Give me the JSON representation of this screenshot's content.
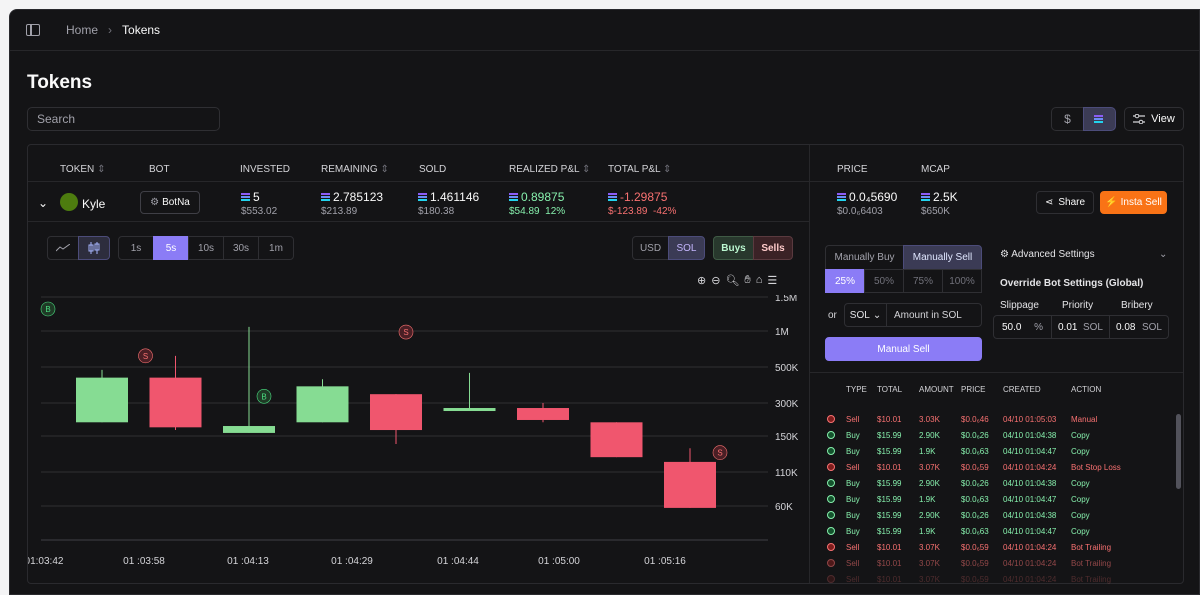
{
  "breadcrumb": {
    "home": "Home",
    "current": "Tokens"
  },
  "page_title": "Tokens",
  "search": {
    "placeholder": "Search"
  },
  "toolbar": {
    "currency_usd": "$",
    "view_label": "View"
  },
  "columns": {
    "token": "TOKEN",
    "bot": "BOT",
    "invested": "INVESTED",
    "remaining": "REMAINING",
    "sold": "SOLD",
    "realized": "REALIZED P&L",
    "total": "TOTAL P&L",
    "price": "PRICE",
    "mcap": "MCAP"
  },
  "row": {
    "token": "Kyle",
    "bot": "BotNa",
    "invested": "5",
    "invested_usd": "$553.02",
    "remaining": "2.785123",
    "remaining_usd": "$213.89",
    "sold": "1.461146",
    "sold_usd": "$180.38",
    "realized": "0.89875",
    "realized_usd": "$54.89",
    "realized_pct": "12%",
    "total": "-1.29875",
    "total_usd": "$-123.89",
    "total_pct": "-42%",
    "price": "0.0₄5690",
    "price_usd": "$0.0₆6403",
    "mcap": "2.5K",
    "mcap_usd": "$650K",
    "share": "Share",
    "insta_sell": "Insta Sell"
  },
  "chart_controls": {
    "timeframes": [
      "1s",
      "5s",
      "10s",
      "30s",
      "1m"
    ],
    "selected_timeframe": "5s",
    "unit_usd": "USD",
    "unit_sol": "SOL",
    "buys": "Buys",
    "sells": "Sells"
  },
  "chart_data": {
    "type": "candlestick",
    "x_ticks": [
      "01:03:42",
      "01 :03:58",
      "01 :04:13",
      "01 :04:29",
      "01 :04:44",
      "01 :05:00",
      "01 :05:16"
    ],
    "y_ticks": [
      "1.5M",
      "1M",
      "500K",
      "300K",
      "150K",
      "110K",
      "60K"
    ],
    "y_scale": "log",
    "candles": [
      {
        "open": 200000,
        "close": 430000,
        "high": 480000,
        "low": 200000,
        "color": "#86dc93"
      },
      {
        "open": 430000,
        "close": 180000,
        "high": 620000,
        "low": 170000,
        "color": "#f0566e"
      },
      {
        "open": 160000,
        "close": 185000,
        "high": 1050000,
        "low": 160000,
        "color": "#86dc93"
      },
      {
        "open": 200000,
        "close": 380000,
        "high": 420000,
        "low": 200000,
        "color": "#86dc93"
      },
      {
        "open": 340000,
        "close": 170000,
        "high": 340000,
        "low": 140000,
        "color": "#f0566e"
      },
      {
        "open": 255000,
        "close": 270000,
        "high": 460000,
        "low": 255000,
        "color": "#86dc93"
      },
      {
        "open": 270000,
        "close": 210000,
        "high": 300000,
        "low": 200000,
        "color": "#f0566e"
      },
      {
        "open": 200000,
        "close": 125000,
        "high": 200000,
        "low": 125000,
        "color": "#f0566e"
      },
      {
        "open": 120000,
        "close": 58000,
        "high": 135000,
        "low": 58000,
        "color": "#f0566e"
      }
    ],
    "markers": [
      {
        "label": "B",
        "type": "buy",
        "candle": 0,
        "value": 1300000
      },
      {
        "label": "S",
        "type": "sell",
        "candle": 1,
        "value": 620000
      },
      {
        "label": "B",
        "type": "buy",
        "candle": 2,
        "value": 330000
      },
      {
        "label": "S",
        "type": "sell",
        "candle": 4,
        "value": 980000
      },
      {
        "label": "S",
        "type": "sell",
        "candle": 8,
        "value": 130000
      }
    ]
  },
  "trade_panel": {
    "manual_buy": "Manually Buy",
    "manual_sell": "Manually Sell",
    "percents": [
      "25%",
      "50%",
      "75%",
      "100%"
    ],
    "selected_percent": "25%",
    "or": "or",
    "currency": "SOL",
    "amount_placeholder": "Amount in SOL",
    "submit": "Manual Sell",
    "advanced": "Advanced Settings",
    "override": "Override Bot Settings (Global)",
    "slippage_label": "Slippage",
    "slippage_value": "50.0",
    "slippage_unit": "%",
    "priority_label": "Priority",
    "priority_value": "0.01",
    "priority_unit": "SOL",
    "bribery_label": "Bribery",
    "bribery_value": "0.08",
    "bribery_unit": "SOL"
  },
  "trades": {
    "headers": [
      "TYPE",
      "TOTAL",
      "AMOUNT",
      "PRICE",
      "CREATED",
      "ACTION"
    ],
    "rows": [
      [
        "Sell",
        "$10.01",
        "3.03K",
        "$0.0₆46",
        "04/10 01:05:03",
        "Manual"
      ],
      [
        "Buy",
        "$15.99",
        "2.90K",
        "$0.0₆26",
        "04/10 01:04:38",
        "Copy"
      ],
      [
        "Buy",
        "$15.99",
        "1.9K",
        "$0.0₆63",
        "04/10 01:04:47",
        "Copy"
      ],
      [
        "Sell",
        "$10.01",
        "3.07K",
        "$0.0₆59",
        "04/10 01:04:24",
        "Bot Stop Loss"
      ],
      [
        "Buy",
        "$15.99",
        "2.90K",
        "$0.0₆26",
        "04/10 01:04:38",
        "Copy"
      ],
      [
        "Buy",
        "$15.99",
        "1.9K",
        "$0.0₆63",
        "04/10 01:04:47",
        "Copy"
      ],
      [
        "Buy",
        "$15.99",
        "2.90K",
        "$0.0₆26",
        "04/10 01:04:38",
        "Copy"
      ],
      [
        "Buy",
        "$15.99",
        "1.9K",
        "$0.0₆63",
        "04/10 01:04:47",
        "Copy"
      ],
      [
        "Sell",
        "$10.01",
        "3.07K",
        "$0.0₆59",
        "04/10 01:04:24",
        "Bot Trailing"
      ],
      [
        "Sell",
        "$10.01",
        "3.07K",
        "$0.0₆59",
        "04/10 01:04:24",
        "Bot Trailing"
      ],
      [
        "Sell",
        "$10.01",
        "3.07K",
        "$0.0₆59",
        "04/10 01:04:24",
        "Bot Trailing"
      ]
    ]
  },
  "colors": {
    "buy": "#86efac",
    "sell": "#f87171",
    "accent": "#8b7cf6",
    "insta": "#f97316"
  }
}
